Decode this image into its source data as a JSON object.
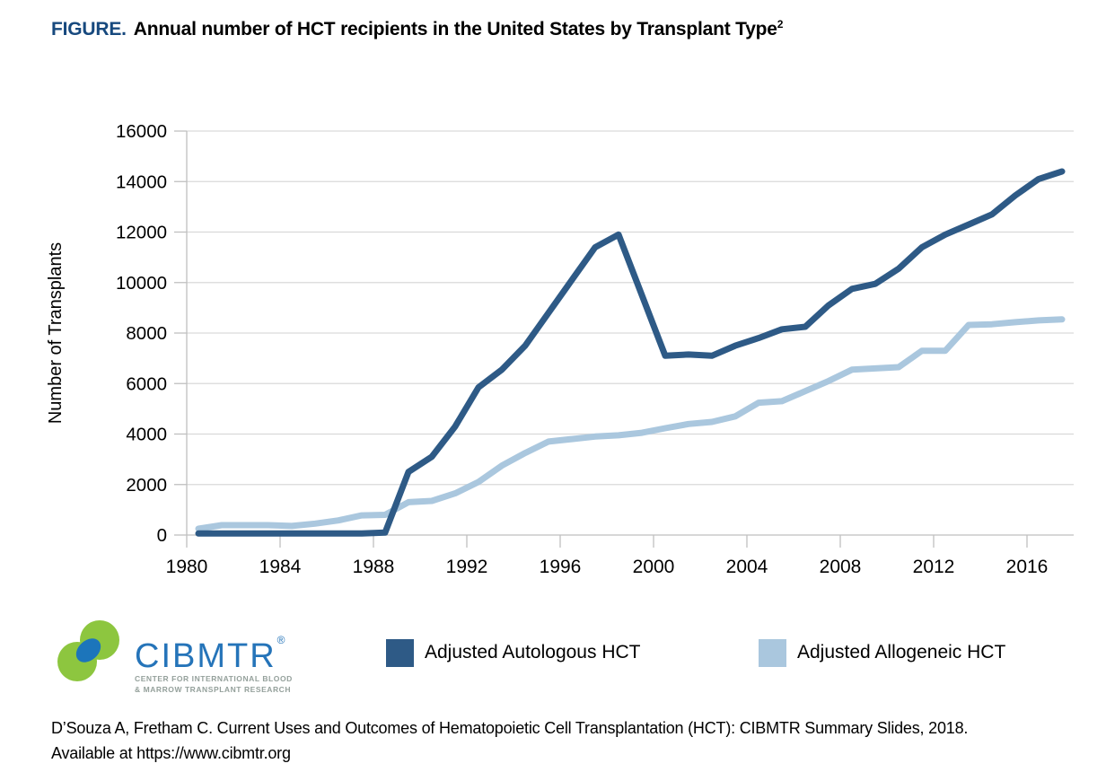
{
  "header": {
    "figure_label": "FIGURE.",
    "title": "Annual number of HCT recipients in the United States by Transplant Type",
    "title_superscript": "2"
  },
  "chart_data": {
    "type": "line",
    "title": "Annual number of HCT recipients in the United States by Transplant Type",
    "xlabel": "",
    "ylabel": "Number of Transplants",
    "ylim": [
      0,
      16000
    ],
    "ytick_step": 2000,
    "grid": true,
    "legend_position": "bottom",
    "x": [
      1980,
      1981,
      1982,
      1983,
      1984,
      1985,
      1986,
      1987,
      1988,
      1989,
      1990,
      1991,
      1992,
      1993,
      1994,
      1995,
      1996,
      1997,
      1998,
      1999,
      2000,
      2001,
      2002,
      2003,
      2004,
      2005,
      2006,
      2007,
      2008,
      2009,
      2010,
      2011,
      2012,
      2013,
      2014,
      2015,
      2016,
      2017
    ],
    "xtick_labels": [
      "1980",
      "1984",
      "1988",
      "1992",
      "1996",
      "2000",
      "2004",
      "2008",
      "2012",
      "2016"
    ],
    "xtick_years": [
      1980,
      1984,
      1988,
      1992,
      1996,
      2000,
      2004,
      2008,
      2012,
      2016
    ],
    "series": [
      {
        "name": "Adjusted Autologous HCT",
        "color": "#2E5A86",
        "values": [
          60,
          60,
          60,
          60,
          60,
          60,
          60,
          60,
          100,
          2500,
          3100,
          4300,
          5850,
          6550,
          7500,
          8800,
          10100,
          11400,
          11900,
          9500,
          7100,
          7150,
          7100,
          7500,
          7800,
          8150,
          8250,
          9100,
          9750,
          9950,
          10550,
          11400,
          11900,
          12300,
          12700,
          13450,
          14100,
          14400
        ]
      },
      {
        "name": "Adjusted Allogeneic HCT",
        "color": "#AAC7DE",
        "values": [
          250,
          390,
          390,
          390,
          360,
          450,
          580,
          780,
          800,
          1300,
          1350,
          1650,
          2100,
          2750,
          3250,
          3700,
          3800,
          3900,
          3950,
          4050,
          4230,
          4400,
          4480,
          4700,
          5240,
          5300,
          5700,
          6100,
          6550,
          6600,
          6650,
          7300,
          7300,
          8320,
          8350,
          8430,
          8500,
          8540
        ]
      }
    ],
    "grid_color": "#D9D9D9",
    "axis_color": "#BFBFBF"
  },
  "logo": {
    "name": "CIBMTR",
    "reg": "®",
    "tagline_line1": "CENTER FOR INTERNATIONAL BLOOD",
    "tagline_line2": "& MARROW TRANSPLANT RESEARCH",
    "green": "#8DC63F",
    "blue": "#1C75BB"
  },
  "citation": {
    "line1": "D’Souza A, Fretham C. Current Uses and Outcomes of Hematopoietic Cell Transplantation (HCT): CIBMTR Summary Slides, 2018.",
    "line2": "Available at https://www.cibmtr.org"
  }
}
